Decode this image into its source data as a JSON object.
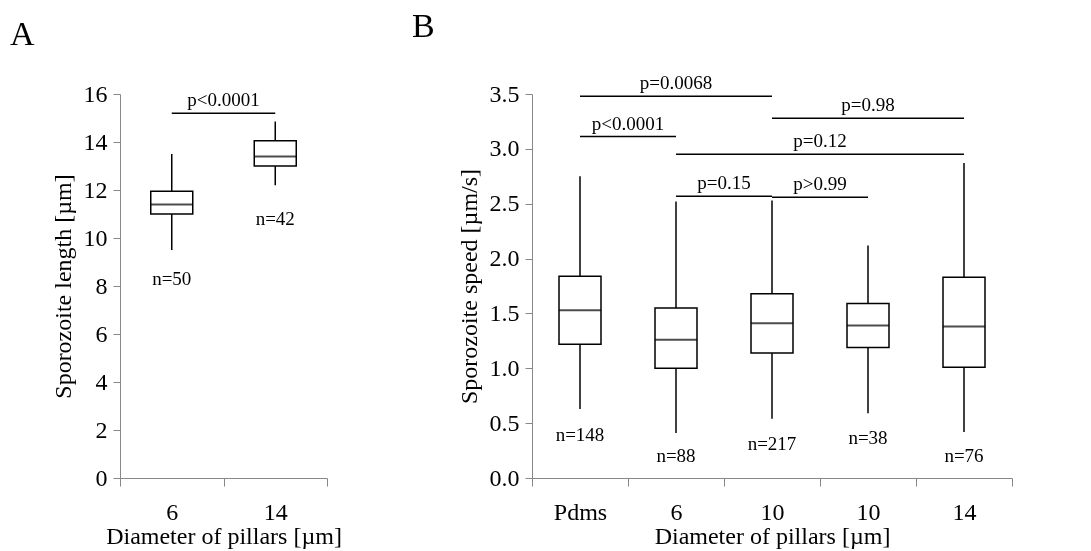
{
  "chart_data": [
    {
      "type": "box",
      "title": "A",
      "xlabel": "Diameter of pillars [µm]",
      "ylabel": "Sporozoite length [µm]",
      "categories": [
        "6",
        "14"
      ],
      "boxes": [
        {
          "low": 9.5,
          "q1": 11.0,
          "median": 11.4,
          "q3": 11.95,
          "high": 13.5
        },
        {
          "low": 12.2,
          "q1": 13.0,
          "median": 13.4,
          "q3": 14.05,
          "high": 14.85
        }
      ],
      "ylim": [
        0,
        16
      ],
      "yticks": [
        0,
        2,
        4,
        6,
        8,
        10,
        12,
        14,
        16
      ],
      "annotations": [
        "p<0.0001",
        "n=50",
        "n=42"
      ]
    },
    {
      "type": "box",
      "title": "B",
      "xlabel": "Diameter of pillars [µm]",
      "ylabel": "Sporozoite speed [µm/s]",
      "categories": [
        "Pdms",
        "6",
        "10",
        "10",
        "14"
      ],
      "boxes": [
        {
          "low": 0.63,
          "q1": 1.22,
          "median": 1.53,
          "q3": 1.84,
          "high": 2.75
        },
        {
          "low": 0.41,
          "q1": 1.0,
          "median": 1.26,
          "q3": 1.55,
          "high": 2.52
        },
        {
          "low": 0.54,
          "q1": 1.14,
          "median": 1.41,
          "q3": 1.68,
          "high": 2.53
        },
        {
          "low": 0.59,
          "q1": 1.19,
          "median": 1.39,
          "q3": 1.59,
          "high": 2.12
        },
        {
          "low": 0.42,
          "q1": 1.01,
          "median": 1.38,
          "q3": 1.83,
          "high": 2.87
        }
      ],
      "ylim": [
        0,
        3.5
      ],
      "yticks": [
        {
          "value": 0,
          "label": "0.0"
        },
        {
          "value": 0.5,
          "label": "0.5"
        },
        {
          "value": 1,
          "label": "1.0"
        },
        {
          "value": 1.5,
          "label": "1.5"
        },
        {
          "value": 2,
          "label": "2.0"
        },
        {
          "value": 2.5,
          "label": "2.5"
        },
        {
          "value": 3,
          "label": "3.0"
        },
        {
          "value": 3.5,
          "label": "3.5"
        }
      ],
      "annotations": [
        "p=0.0068",
        "p<0.0001",
        "p=0.98",
        "p=0.12",
        "p=0.15",
        "p>0.99",
        "n=148",
        "n=88",
        "n=217",
        "n=38",
        "n=76"
      ]
    }
  ]
}
